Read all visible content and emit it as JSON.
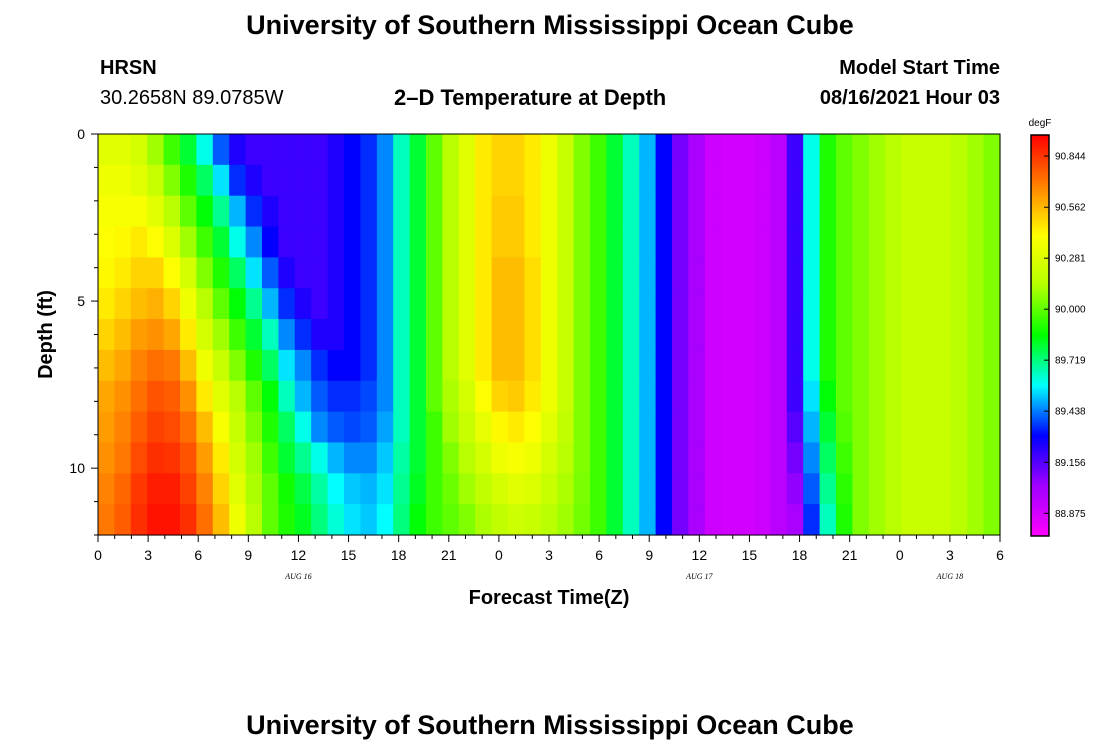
{
  "header": {
    "title_top": "University of Southern Mississippi Ocean Cube",
    "station": "HRSN",
    "coords": "30.2658N  89.0785W",
    "chart_title": "2–D Temperature at Depth",
    "model_label": "Model Start Time",
    "model_time": "08/16/2021 Hour 03",
    "title_bottom": "University of Southern Mississippi Ocean Cube"
  },
  "chart_data": {
    "type": "heatmap",
    "title": "2–D Temperature at Depth",
    "xlabel": "Forecast Time(Z)",
    "ylabel": "Depth (ft)",
    "colorbar_unit": "degF",
    "x_ticks": [
      "0",
      "3",
      "6",
      "9",
      "12",
      "15",
      "18",
      "21",
      "0",
      "3",
      "6",
      "9",
      "12",
      "15",
      "18",
      "21",
      "0",
      "3",
      "6"
    ],
    "x_hours": [
      0,
      3,
      6,
      9,
      12,
      15,
      18,
      21,
      24,
      27,
      30,
      33,
      36,
      39,
      42,
      45,
      48,
      51,
      54
    ],
    "date_labels": [
      {
        "label": "AUG 16",
        "hour": 12
      },
      {
        "label": "AUG 17",
        "hour": 36
      },
      {
        "label": "AUG 18",
        "hour": 51
      }
    ],
    "y_ticks": [
      "0",
      "5",
      "10"
    ],
    "y_tick_values": [
      0,
      5,
      10
    ],
    "xlim": [
      0,
      54
    ],
    "ylim": [
      0,
      12
    ],
    "colorbar_ticks": [
      "90.844",
      "90.562",
      "90.281",
      "90.000",
      "89.719",
      "89.438",
      "89.156",
      "88.875"
    ],
    "colorbar_range": [
      88.75,
      90.96
    ],
    "colors": {
      "scale": [
        "#ff00ff",
        "#a000ff",
        "#0000ff",
        "#00ffff",
        "#00ff00",
        "#b4ff00",
        "#ffff00",
        "#ff8000",
        "#ff0000"
      ]
    },
    "x_hours_sampled": [
      0,
      1,
      2,
      3,
      4,
      5,
      6,
      7,
      8,
      9,
      10,
      11,
      12,
      13,
      14,
      15,
      16,
      17,
      18,
      19,
      20,
      21,
      22,
      23,
      24,
      25,
      26,
      27,
      28,
      29,
      30,
      31,
      32,
      33,
      34,
      35,
      36,
      37,
      38,
      39,
      40,
      41,
      42,
      43,
      44,
      45,
      46,
      47,
      48,
      49,
      50,
      51,
      52,
      53,
      54
    ],
    "depth_levels_ft": [
      0,
      1,
      2,
      3,
      4,
      5,
      6,
      7,
      8,
      9,
      10,
      11,
      12
    ],
    "values": [
      [
        90.3,
        90.3,
        90.25,
        90.1,
        89.95,
        89.8,
        89.6,
        89.4,
        89.25,
        89.2,
        89.2,
        89.2,
        89.2,
        89.2,
        89.25,
        89.3,
        89.35,
        89.45,
        89.65,
        89.8,
        90.0,
        90.15,
        90.3,
        90.45,
        90.5,
        90.5,
        90.45,
        90.35,
        90.2,
        90.05,
        89.95,
        89.8,
        89.65,
        89.5,
        89.3,
        89.1,
        89.0,
        88.9,
        88.88,
        88.88,
        88.9,
        88.95,
        89.2,
        89.6,
        89.9,
        90.0,
        90.05,
        90.1,
        90.15,
        90.2,
        90.2,
        90.2,
        90.15,
        90.1,
        90.05
      ],
      [
        90.35,
        90.35,
        90.3,
        90.2,
        90.05,
        89.9,
        89.75,
        89.55,
        89.35,
        89.25,
        89.2,
        89.2,
        89.2,
        89.2,
        89.25,
        89.3,
        89.35,
        89.45,
        89.65,
        89.8,
        90.0,
        90.15,
        90.3,
        90.45,
        90.5,
        90.5,
        90.45,
        90.35,
        90.2,
        90.05,
        89.95,
        89.8,
        89.65,
        89.5,
        89.3,
        89.1,
        89.0,
        88.9,
        88.88,
        88.88,
        88.9,
        88.95,
        89.2,
        89.6,
        89.9,
        90.0,
        90.05,
        90.1,
        90.15,
        90.2,
        90.2,
        90.2,
        90.15,
        90.1,
        90.05
      ],
      [
        90.38,
        90.38,
        90.38,
        90.3,
        90.15,
        90.0,
        89.85,
        89.7,
        89.5,
        89.35,
        89.25,
        89.2,
        89.2,
        89.2,
        89.25,
        89.3,
        89.35,
        89.45,
        89.65,
        89.8,
        90.0,
        90.15,
        90.3,
        90.45,
        90.52,
        90.52,
        90.45,
        90.35,
        90.2,
        90.05,
        89.95,
        89.8,
        89.65,
        89.5,
        89.3,
        89.1,
        89.0,
        88.9,
        88.88,
        88.88,
        88.9,
        88.95,
        89.2,
        89.6,
        89.9,
        90.0,
        90.05,
        90.1,
        90.15,
        90.2,
        90.2,
        90.2,
        90.15,
        90.1,
        90.05
      ],
      [
        90.4,
        90.42,
        90.45,
        90.4,
        90.28,
        90.1,
        89.95,
        89.8,
        89.6,
        89.45,
        89.3,
        89.2,
        89.2,
        89.2,
        89.25,
        89.3,
        89.35,
        89.45,
        89.65,
        89.8,
        90.0,
        90.15,
        90.3,
        90.45,
        90.52,
        90.52,
        90.45,
        90.35,
        90.2,
        90.05,
        89.95,
        89.8,
        89.65,
        89.5,
        89.3,
        89.1,
        89.0,
        88.9,
        88.88,
        88.88,
        88.9,
        88.95,
        89.2,
        89.6,
        89.9,
        90.0,
        90.05,
        90.1,
        90.15,
        90.2,
        90.2,
        90.2,
        90.15,
        90.1,
        90.05
      ],
      [
        90.42,
        90.45,
        90.5,
        90.5,
        90.4,
        90.25,
        90.05,
        89.9,
        89.75,
        89.55,
        89.4,
        89.25,
        89.2,
        89.2,
        89.25,
        89.3,
        89.35,
        89.45,
        89.65,
        89.8,
        90.0,
        90.15,
        90.3,
        90.45,
        90.55,
        90.55,
        90.48,
        90.35,
        90.2,
        90.05,
        89.95,
        89.8,
        89.65,
        89.5,
        89.3,
        89.1,
        89.0,
        88.9,
        88.88,
        88.88,
        88.9,
        88.95,
        89.2,
        89.6,
        89.9,
        90.0,
        90.05,
        90.1,
        90.15,
        90.2,
        90.2,
        90.2,
        90.15,
        90.1,
        90.05
      ],
      [
        90.45,
        90.5,
        90.55,
        90.58,
        90.5,
        90.35,
        90.15,
        90.0,
        89.85,
        89.7,
        89.5,
        89.35,
        89.25,
        89.2,
        89.25,
        89.3,
        89.35,
        89.45,
        89.65,
        89.8,
        90.0,
        90.15,
        90.3,
        90.45,
        90.55,
        90.55,
        90.48,
        90.35,
        90.2,
        90.05,
        89.95,
        89.8,
        89.65,
        89.5,
        89.3,
        89.1,
        89.0,
        88.9,
        88.88,
        88.88,
        88.9,
        88.95,
        89.2,
        89.6,
        89.9,
        90.0,
        90.05,
        90.1,
        90.15,
        90.2,
        90.2,
        90.2,
        90.15,
        90.1,
        90.05
      ],
      [
        90.5,
        90.55,
        90.62,
        90.65,
        90.6,
        90.45,
        90.25,
        90.1,
        89.95,
        89.8,
        89.65,
        89.45,
        89.35,
        89.25,
        89.25,
        89.3,
        89.35,
        89.45,
        89.65,
        89.8,
        90.0,
        90.15,
        90.3,
        90.45,
        90.55,
        90.55,
        90.48,
        90.35,
        90.2,
        90.05,
        89.95,
        89.8,
        89.65,
        89.5,
        89.3,
        89.1,
        89.0,
        88.9,
        88.88,
        88.88,
        88.9,
        88.95,
        89.2,
        89.6,
        89.9,
        90.0,
        90.05,
        90.1,
        90.15,
        90.2,
        90.2,
        90.2,
        90.15,
        90.1,
        90.05
      ],
      [
        90.55,
        90.6,
        90.68,
        90.72,
        90.7,
        90.55,
        90.35,
        90.2,
        90.05,
        89.9,
        89.75,
        89.55,
        89.45,
        89.35,
        89.3,
        89.3,
        89.35,
        89.45,
        89.65,
        89.8,
        90.0,
        90.15,
        90.3,
        90.45,
        90.55,
        90.55,
        90.48,
        90.35,
        90.2,
        90.05,
        89.95,
        89.8,
        89.65,
        89.5,
        89.3,
        89.1,
        89.0,
        88.9,
        88.88,
        88.88,
        88.9,
        88.95,
        89.2,
        89.6,
        89.9,
        90.0,
        90.05,
        90.1,
        90.15,
        90.2,
        90.2,
        90.2,
        90.15,
        90.1,
        90.05
      ],
      [
        90.6,
        90.65,
        90.72,
        90.78,
        90.76,
        90.65,
        90.45,
        90.3,
        90.15,
        90.0,
        89.85,
        89.65,
        89.5,
        89.4,
        89.35,
        89.35,
        89.38,
        89.45,
        89.65,
        89.8,
        90.0,
        90.12,
        90.25,
        90.4,
        90.5,
        90.52,
        90.45,
        90.35,
        90.2,
        90.05,
        89.95,
        89.8,
        89.65,
        89.5,
        89.3,
        89.1,
        89.0,
        88.9,
        88.88,
        88.88,
        88.9,
        88.95,
        89.2,
        89.55,
        89.85,
        90.0,
        90.05,
        90.1,
        90.15,
        90.2,
        90.2,
        90.2,
        90.15,
        90.1,
        90.05
      ],
      [
        90.62,
        90.68,
        90.76,
        90.82,
        90.8,
        90.72,
        90.55,
        90.38,
        90.2,
        90.05,
        89.9,
        89.75,
        89.6,
        89.45,
        89.4,
        89.38,
        89.4,
        89.48,
        89.65,
        89.8,
        89.95,
        90.1,
        90.2,
        90.32,
        90.42,
        90.45,
        90.4,
        90.3,
        90.18,
        90.05,
        89.95,
        89.8,
        89.65,
        89.5,
        89.3,
        89.1,
        89.0,
        88.9,
        88.88,
        88.88,
        88.9,
        88.95,
        89.15,
        89.5,
        89.8,
        89.98,
        90.05,
        90.1,
        90.15,
        90.2,
        90.2,
        90.2,
        90.15,
        90.1,
        90.05
      ],
      [
        90.65,
        90.7,
        90.8,
        90.86,
        90.85,
        90.78,
        90.62,
        90.45,
        90.25,
        90.1,
        89.95,
        89.8,
        89.7,
        89.6,
        89.5,
        89.45,
        89.45,
        89.52,
        89.68,
        89.8,
        89.95,
        90.05,
        90.15,
        90.25,
        90.35,
        90.38,
        90.35,
        90.25,
        90.15,
        90.05,
        89.95,
        89.8,
        89.65,
        89.5,
        89.3,
        89.1,
        89.0,
        88.9,
        88.88,
        88.88,
        88.9,
        88.95,
        89.1,
        89.45,
        89.75,
        89.95,
        90.05,
        90.1,
        90.15,
        90.2,
        90.2,
        90.2,
        90.15,
        90.1,
        90.05
      ],
      [
        90.68,
        90.74,
        90.84,
        90.9,
        90.9,
        90.82,
        90.68,
        90.5,
        90.3,
        90.12,
        90.0,
        89.88,
        89.78,
        89.68,
        89.58,
        89.52,
        89.5,
        89.55,
        89.7,
        89.82,
        89.95,
        90.02,
        90.1,
        90.18,
        90.25,
        90.3,
        90.28,
        90.2,
        90.12,
        90.04,
        89.95,
        89.8,
        89.65,
        89.5,
        89.3,
        89.1,
        89.0,
        88.9,
        88.88,
        88.88,
        88.9,
        88.95,
        89.05,
        89.4,
        89.7,
        89.92,
        90.05,
        90.1,
        90.15,
        90.2,
        90.2,
        90.2,
        90.15,
        90.1,
        90.05
      ],
      [
        90.7,
        90.76,
        90.86,
        90.92,
        90.92,
        90.86,
        90.72,
        90.55,
        90.35,
        90.15,
        90.0,
        89.9,
        89.82,
        89.72,
        89.62,
        89.55,
        89.52,
        89.58,
        89.72,
        89.85,
        89.95,
        90.0,
        90.05,
        90.12,
        90.18,
        90.22,
        90.2,
        90.15,
        90.1,
        90.03,
        89.95,
        89.8,
        89.65,
        89.5,
        89.3,
        89.1,
        89.0,
        88.9,
        88.88,
        88.88,
        88.9,
        88.95,
        89.0,
        89.35,
        89.65,
        89.9,
        90.05,
        90.1,
        90.15,
        90.2,
        90.2,
        90.2,
        90.15,
        90.1,
        90.05
      ]
    ]
  }
}
